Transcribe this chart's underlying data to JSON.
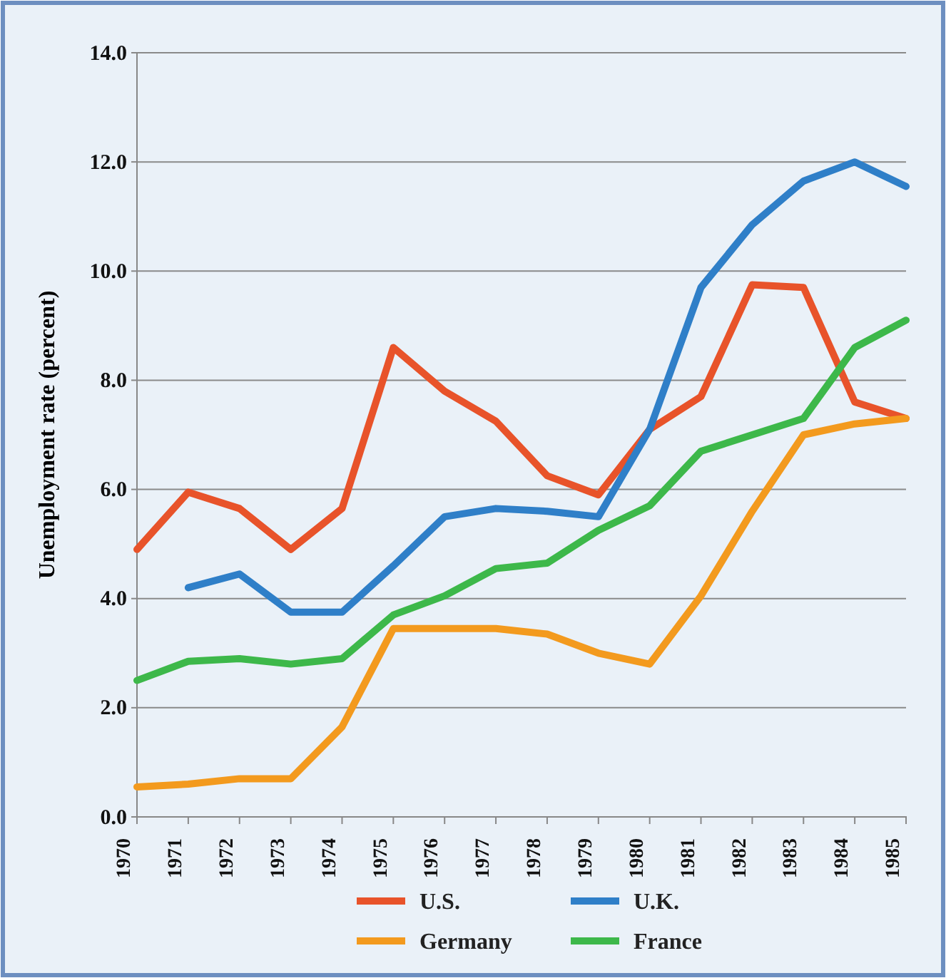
{
  "chart_data": {
    "type": "line",
    "ylabel": "Unemployment rate (percent)",
    "categories": [
      "1970",
      "1971",
      "1972",
      "1973",
      "1974",
      "1975",
      "1976",
      "1977",
      "1978",
      "1979",
      "1980",
      "1981",
      "1982",
      "1983",
      "1984",
      "1985"
    ],
    "series": [
      {
        "name": "U.S.",
        "color": "#e8532a",
        "values": [
          4.9,
          5.95,
          5.65,
          4.9,
          5.65,
          8.6,
          7.8,
          7.25,
          6.25,
          5.9,
          7.1,
          7.7,
          9.75,
          9.7,
          7.6,
          7.3
        ]
      },
      {
        "name": "U.K.",
        "color": "#2f7fc8",
        "values": [
          null,
          4.2,
          4.45,
          3.75,
          3.75,
          4.6,
          5.5,
          5.65,
          5.6,
          5.5,
          7.1,
          9.7,
          10.85,
          11.65,
          12.0,
          11.55
        ]
      },
      {
        "name": "Germany",
        "color": "#f39a1e",
        "values": [
          0.55,
          0.6,
          0.7,
          0.7,
          1.65,
          3.45,
          3.45,
          3.45,
          3.35,
          3.0,
          2.8,
          4.05,
          5.6,
          7.0,
          7.2,
          7.3
        ]
      },
      {
        "name": "France",
        "color": "#3db84a",
        "values": [
          2.5,
          2.85,
          2.9,
          2.8,
          2.9,
          3.7,
          4.05,
          4.55,
          4.65,
          5.25,
          5.7,
          6.7,
          7.0,
          7.3,
          8.6,
          9.1
        ]
      }
    ],
    "ylim": [
      0,
      14
    ],
    "yticks": [
      {
        "value": 0,
        "label": "0.0"
      },
      {
        "value": 2,
        "label": "2.0"
      },
      {
        "value": 4,
        "label": "4.0"
      },
      {
        "value": 6,
        "label": "6.0"
      },
      {
        "value": 8,
        "label": "8.0"
      },
      {
        "value": 10,
        "label": "10.0"
      },
      {
        "value": 12,
        "label": "12.0"
      },
      {
        "value": 14,
        "label": "14.0"
      }
    ],
    "grid": "y",
    "legend": "bottom",
    "marker": "none",
    "line_style": "solid"
  }
}
